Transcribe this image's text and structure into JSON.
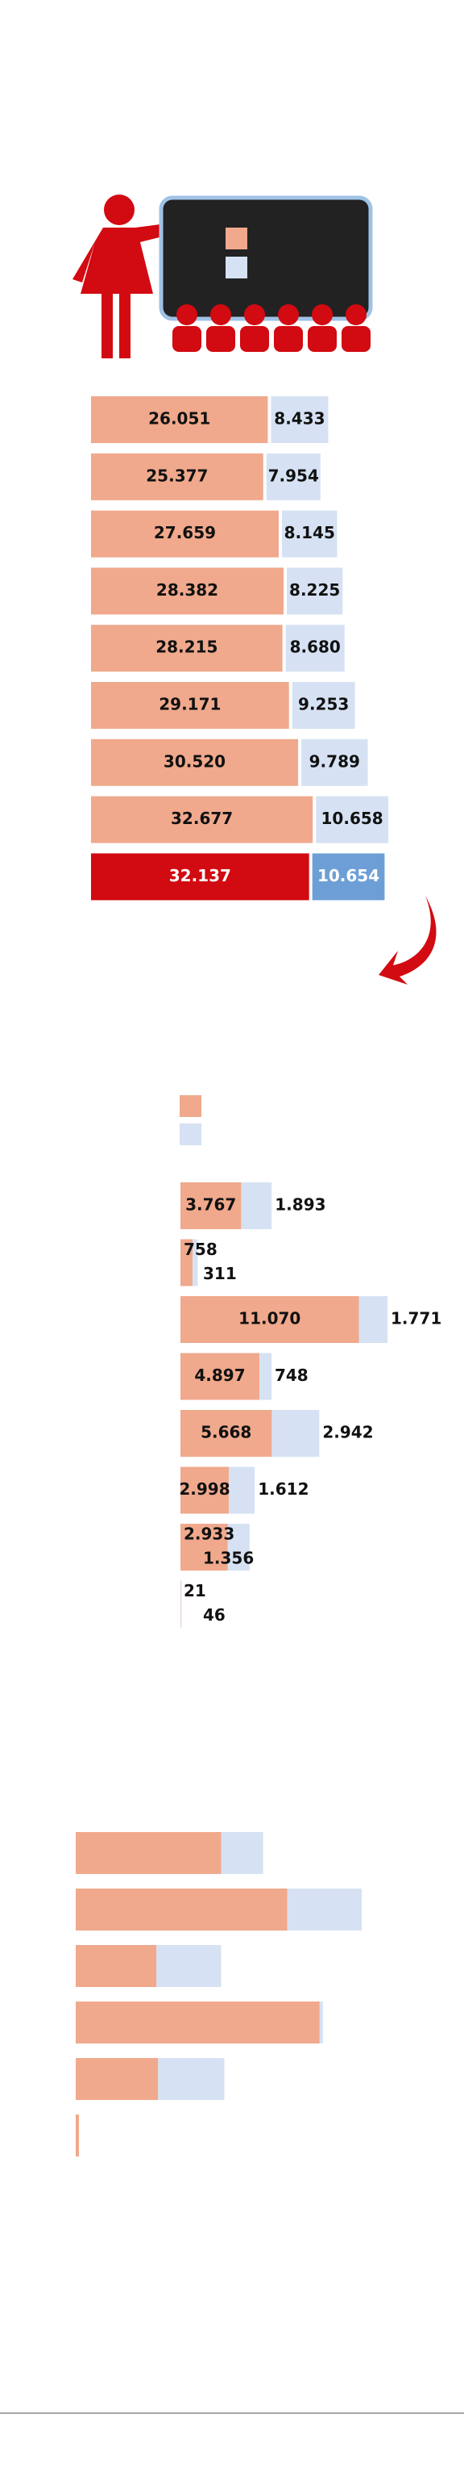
{
  "chart_data": [
    {
      "type": "bar",
      "orientation": "horizontal",
      "stacked": true,
      "series": [
        {
          "color": "#f0a98c",
          "colors": [
            "#f0a98c",
            "#f0a98c",
            "#f0a98c",
            "#f0a98c",
            "#f0a98c",
            "#f0a98c",
            "#f0a98c",
            "#f0a98c",
            "#d20a11"
          ],
          "values": [
            26051,
            25377,
            27659,
            28382,
            28215,
            29171,
            30520,
            32677,
            32137
          ],
          "value_labels": [
            "26.051",
            "25.377",
            "27.659",
            "28.382",
            "28.215",
            "29.171",
            "30.520",
            "32.677",
            "32.137"
          ]
        },
        {
          "color": "#d6e2f3",
          "colors": [
            "#d6e2f3",
            "#d6e2f3",
            "#d6e2f3",
            "#d6e2f3",
            "#d6e2f3",
            "#d6e2f3",
            "#d6e2f3",
            "#d6e2f3",
            "#6d9fd6"
          ],
          "values": [
            8433,
            7954,
            8145,
            8225,
            8680,
            9253,
            9789,
            10658,
            10654
          ],
          "value_labels": [
            "8.433",
            "7.954",
            "8.145",
            "8.225",
            "8.680",
            "9.253",
            "9.789",
            "10.658",
            "10.654"
          ]
        }
      ]
    },
    {
      "type": "bar",
      "orientation": "horizontal",
      "stacked": true,
      "series": [
        {
          "color": "#f0a98c",
          "values": [
            3767,
            758,
            11070,
            4897,
            5668,
            2998,
            2933,
            21
          ],
          "value_labels": [
            "3.767",
            "758",
            "11.070",
            "4.897",
            "5.668",
            "2.998",
            "2.933",
            "21"
          ]
        },
        {
          "color": "#d6e2f3",
          "values": [
            1893,
            311,
            1771,
            748,
            2942,
            1612,
            1356,
            46
          ],
          "value_labels": [
            "1.893",
            "311",
            "1.771",
            "748",
            "2.942",
            "1.612",
            "1.356",
            "46"
          ]
        }
      ]
    },
    {
      "type": "bar",
      "orientation": "horizontal",
      "stacked": true,
      "series": [
        {
          "color": "#f0a98c",
          "values": [
            9000,
            13100,
            5000,
            15100,
            5100,
            200
          ]
        },
        {
          "color": "#d6e2f3",
          "values": [
            2600,
            4600,
            4000,
            200,
            4100,
            0
          ]
        }
      ]
    }
  ]
}
